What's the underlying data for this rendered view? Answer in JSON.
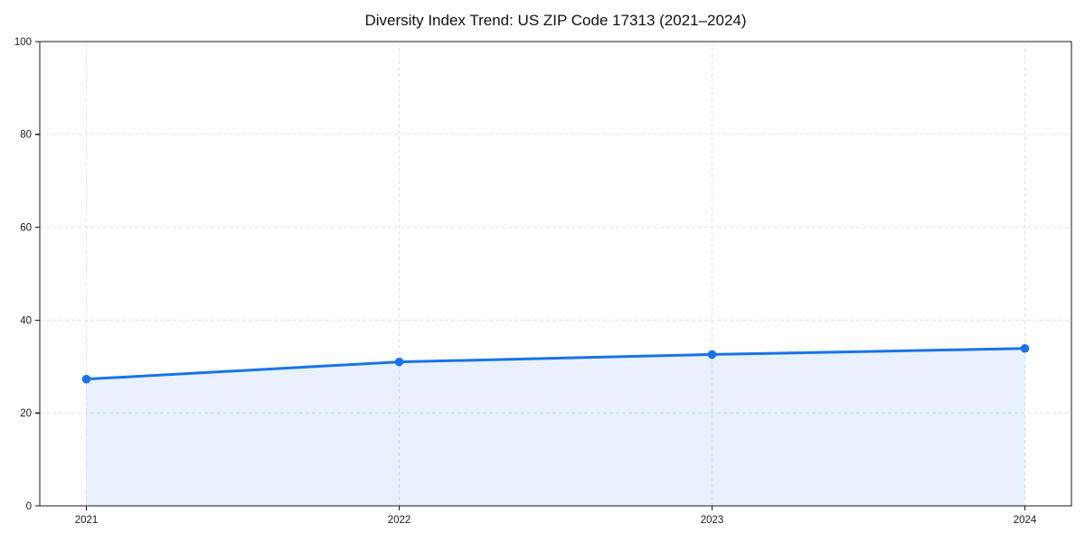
{
  "page": {
    "background": "#ffffff"
  },
  "chart_data": {
    "type": "line",
    "title": "Diversity Index Trend: US ZIP Code 17313 (2021–2024)",
    "categories": [
      "2021",
      "2022",
      "2023",
      "2024"
    ],
    "series": [
      {
        "name": "Diversity Index",
        "values": [
          27.3,
          31.0,
          32.6,
          33.9
        ]
      }
    ],
    "xlabel": "",
    "ylabel": "",
    "ylim": [
      0,
      100
    ],
    "yticks": [
      0,
      20,
      40,
      60,
      80,
      100
    ],
    "grid": "dashed-both-axes",
    "legend": "none",
    "marker": "circle",
    "area_fill": true,
    "colors": {
      "line": "#1a73e8",
      "marker": "#1a73e8",
      "fill": "rgba(26,115,232,0.10)",
      "grid": "#e3e3e3",
      "spine": "#1a1a1a",
      "tick_label": "#1c1c1c",
      "title": "#111111"
    }
  }
}
